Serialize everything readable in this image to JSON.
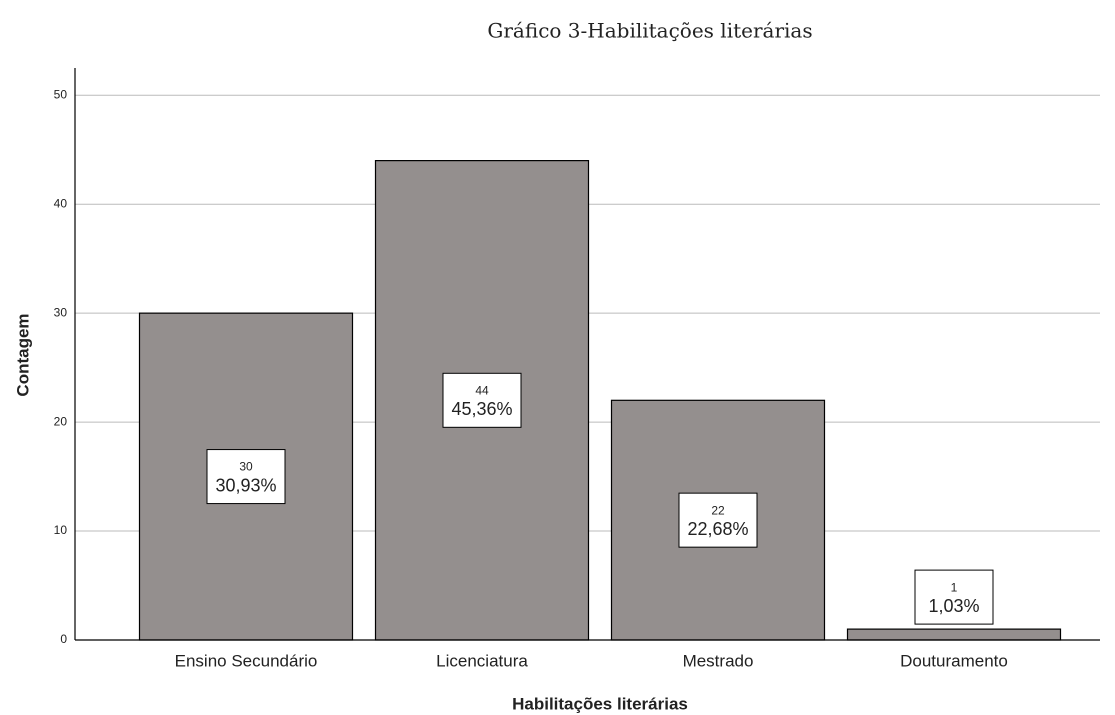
{
  "chart_data": {
    "type": "bar",
    "title": "Gráfico 3-Habilitações literárias",
    "x_label": "Habilitações literárias",
    "y_label": "Contagem",
    "categories": [
      "Ensino Secundário",
      "Licenciatura",
      "Mestrado",
      "Douturamento"
    ],
    "values": [
      30,
      44,
      22,
      1
    ],
    "percentages": [
      30.93,
      45.36,
      22.68,
      1.03
    ],
    "percentage_labels": [
      "30,93%",
      "45,36%",
      "22,68%",
      "1,03%"
    ],
    "color": "#948f8e",
    "ylim": [
      0,
      52.5
    ],
    "yticks": [
      0,
      10,
      20,
      30,
      40,
      50
    ],
    "grid": true
  }
}
